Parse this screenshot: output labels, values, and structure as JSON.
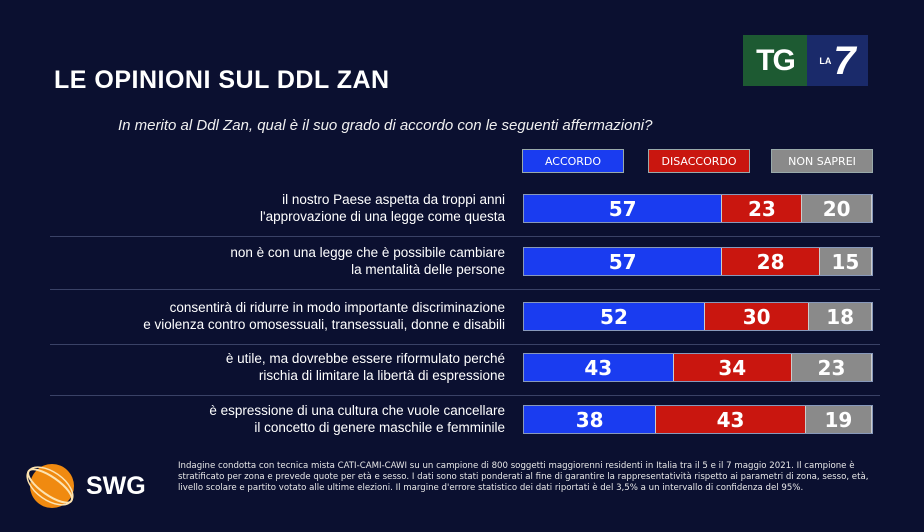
{
  "title": "LE OPINIONI SUL DDL ZAN",
  "subtitle": "In merito al Ddl Zan, qual è il suo grado di accordo con le seguenti affermazioni?",
  "logo": {
    "tg": "TG",
    "la": "LA",
    "seven": "7",
    "swg": "SWG"
  },
  "colors": {
    "accordo": "#1a3cf0",
    "disaccordo": "#c9160f",
    "non_saprei": "#8a8a8a"
  },
  "chart_data": {
    "type": "bar",
    "stacked": true,
    "orientation": "horizontal",
    "title": "LE OPINIONI SUL DDL ZAN",
    "legend": [
      "ACCORDO",
      "DISACCORDO",
      "NON SAPREI"
    ],
    "legend_placement": "top-right",
    "categories": [
      [
        "il nostro Paese aspetta da troppi anni",
        "l'approvazione di una legge come questa"
      ],
      [
        "non è con una legge che è possibile cambiare",
        "la mentalità delle persone"
      ],
      [
        "consentirà di ridurre in modo importante discriminazione",
        "e violenza contro omosessuali, transessuali, donne e disabili"
      ],
      [
        "è utile, ma dovrebbe essere riformulato perché",
        "rischia di limitare la libertà di espressione"
      ],
      [
        "è espressione di una cultura che vuole cancellare",
        "il concetto di genere maschile e femminile"
      ]
    ],
    "series": [
      {
        "name": "ACCORDO",
        "values": [
          57,
          57,
          52,
          43,
          38
        ]
      },
      {
        "name": "DISACCORDO",
        "values": [
          23,
          28,
          30,
          34,
          43
        ]
      },
      {
        "name": "NON SAPREI",
        "values": [
          20,
          15,
          18,
          23,
          19
        ]
      }
    ],
    "xlim": [
      0,
      100
    ]
  },
  "footnote": "Indagine condotta con tecnica mista CATI-CAMI-CAWI su un campione di 800 soggetti maggiorenni residenti in Italia tra il 5 e il 7 maggio 2021. Il campione è stratificato per zona e prevede quote per età e sesso. I dati sono stati ponderati al fine di garantire la rappresentatività rispetto ai parametri di zona, sesso, età, livello scolare e partito votato alle ultime elezioni. Il margine d'errore statistico dei dati riportati è del 3,5% a un intervallo di confidenza del 95%."
}
